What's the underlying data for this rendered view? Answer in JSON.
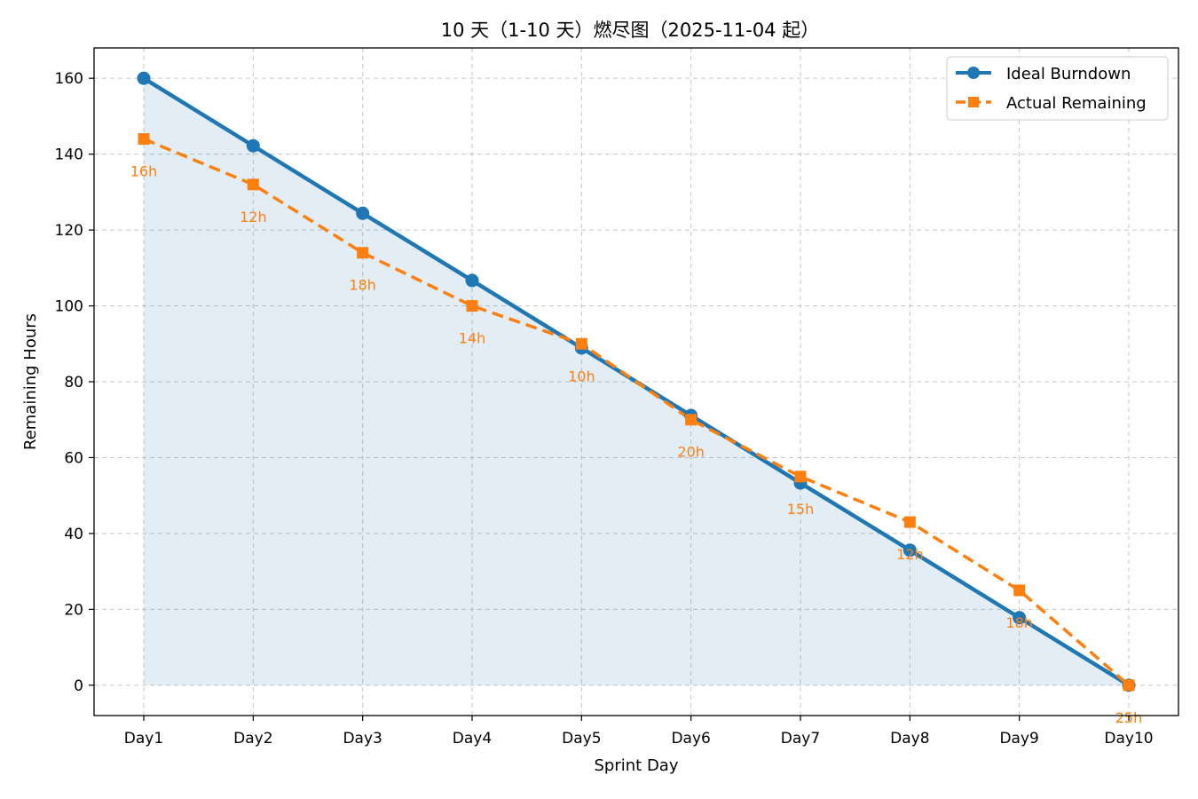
{
  "chart_data": {
    "type": "line",
    "title": "10 天（1-10 天）燃尽图（2025-11-04 起）",
    "xlabel": "Sprint Day",
    "ylabel": "Remaining Hours",
    "categories": [
      "Day1",
      "Day2",
      "Day3",
      "Day4",
      "Day5",
      "Day6",
      "Day7",
      "Day8",
      "Day9",
      "Day10"
    ],
    "ylim": [
      -8,
      168
    ],
    "yticks": [
      0,
      20,
      40,
      60,
      80,
      100,
      120,
      140,
      160
    ],
    "ytick_labels": [
      "0",
      "20",
      "40",
      "60",
      "80",
      "100",
      "120",
      "140",
      "160"
    ],
    "grid": true,
    "legend_position": "top-right",
    "series": [
      {
        "name": "Ideal Burndown",
        "color": "#1f77b4",
        "marker": "circle",
        "line_style": "solid",
        "fill_under": true,
        "values": [
          160,
          142.2,
          124.4,
          106.7,
          88.9,
          71.1,
          53.3,
          35.6,
          17.8,
          0
        ]
      },
      {
        "name": "Actual Remaining",
        "color": "#ff7f0e",
        "marker": "square",
        "line_style": "dashed",
        "values": [
          144,
          132,
          114,
          100,
          90,
          70,
          55,
          43,
          25,
          0
        ]
      }
    ],
    "annotations": {
      "color": "#ff7f0e",
      "labels": [
        "16h",
        "12h",
        "18h",
        "14h",
        "10h",
        "20h",
        "15h",
        "12h",
        "18h",
        "25h"
      ]
    }
  }
}
